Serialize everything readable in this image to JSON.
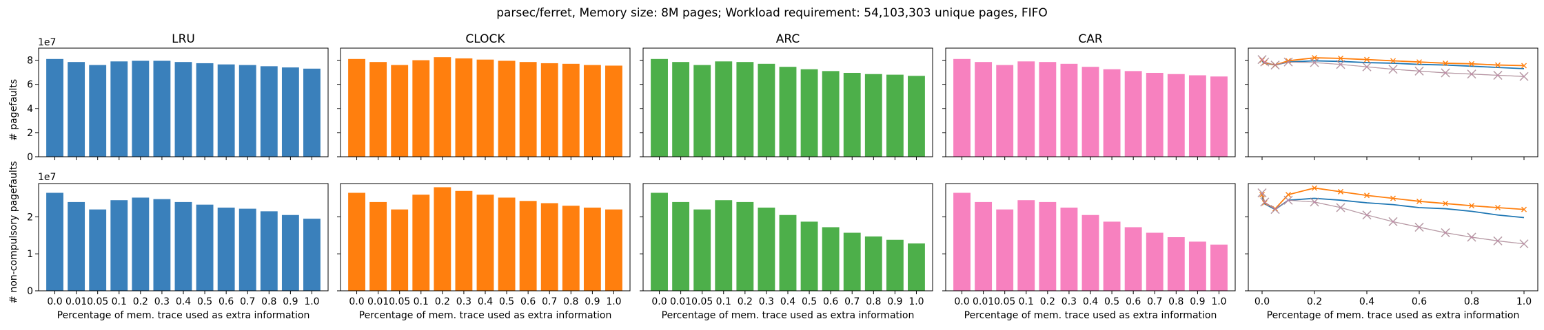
{
  "suptitle": "parsec/ferret, Memory size: 8M pages; Workload requirement: 54,103,303 unique pages, FIFO",
  "scale_label": "1e7",
  "ylabel_top": "# pagefaults",
  "ylabel_bottom": "# non-compulsory pagefaults",
  "xlabel": "Percentage of mem. trace used as extra information",
  "colors": {
    "LRU": "#3a80bb",
    "CLOCK": "#ff7f0e",
    "ARC": "#4daf4a",
    "CAR": "#f781bf",
    "gray": "#999999",
    "line_lru": "#1f77b4",
    "line_clock": "#ff7f0e",
    "line_arc": "#2ca02c",
    "line_car": "#e377c2"
  },
  "chart_data": [
    {
      "type": "bar",
      "row": "top",
      "title": "LRU",
      "color_key": "LRU",
      "categories": [
        "0.0",
        "0.01",
        "0.05",
        "0.1",
        "0.2",
        "0.3",
        "0.4",
        "0.5",
        "0.6",
        "0.7",
        "0.8",
        "0.9",
        "1.0"
      ],
      "values": [
        8.1,
        7.85,
        7.6,
        7.9,
        7.95,
        7.95,
        7.85,
        7.75,
        7.65,
        7.6,
        7.5,
        7.4,
        7.3
      ],
      "ylim": [
        0,
        9
      ],
      "yticks": [
        0,
        2,
        4,
        6,
        8
      ],
      "ylabel": "# pagefaults",
      "xlabel": ""
    },
    {
      "type": "bar",
      "row": "top",
      "title": "CLOCK",
      "color_key": "CLOCK",
      "categories": [
        "0.0",
        "0.01",
        "0.05",
        "0.1",
        "0.2",
        "0.3",
        "0.4",
        "0.5",
        "0.6",
        "0.7",
        "0.8",
        "0.9",
        "1.0"
      ],
      "values": [
        8.1,
        7.85,
        7.6,
        8.0,
        8.25,
        8.15,
        8.05,
        7.95,
        7.85,
        7.75,
        7.7,
        7.6,
        7.55
      ],
      "ylim": [
        0,
        9
      ],
      "yticks": [
        0,
        2,
        4,
        6,
        8
      ],
      "ylabel": "",
      "xlabel": ""
    },
    {
      "type": "bar",
      "row": "top",
      "title": "ARC",
      "color_key": "ARC",
      "categories": [
        "0.0",
        "0.01",
        "0.05",
        "0.1",
        "0.2",
        "0.3",
        "0.4",
        "0.5",
        "0.6",
        "0.7",
        "0.8",
        "0.9",
        "1.0"
      ],
      "values": [
        8.1,
        7.85,
        7.6,
        7.9,
        7.85,
        7.7,
        7.45,
        7.25,
        7.1,
        6.95,
        6.85,
        6.8,
        6.7
      ],
      "ylim": [
        0,
        9
      ],
      "yticks": [
        0,
        2,
        4,
        6,
        8
      ],
      "ylabel": "",
      "xlabel": ""
    },
    {
      "type": "bar",
      "row": "top",
      "title": "CAR",
      "color_key": "CAR",
      "categories": [
        "0.0",
        "0.01",
        "0.05",
        "0.1",
        "0.2",
        "0.3",
        "0.4",
        "0.5",
        "0.6",
        "0.7",
        "0.8",
        "0.9",
        "1.0"
      ],
      "values": [
        8.1,
        7.85,
        7.6,
        7.9,
        7.85,
        7.7,
        7.45,
        7.25,
        7.1,
        6.95,
        6.85,
        6.75,
        6.65
      ],
      "ylim": [
        0,
        9
      ],
      "yticks": [
        0,
        2,
        4,
        6,
        8
      ],
      "ylabel": "",
      "xlabel": ""
    },
    {
      "type": "line",
      "row": "top",
      "title": "",
      "x": [
        0.0,
        0.01,
        0.05,
        0.1,
        0.2,
        0.3,
        0.4,
        0.5,
        0.6,
        0.7,
        0.8,
        0.9,
        1.0
      ],
      "series": [
        {
          "color_key": "line_lru",
          "marker": "none",
          "values": [
            7.9,
            7.75,
            7.6,
            7.85,
            7.95,
            7.9,
            7.8,
            7.75,
            7.65,
            7.6,
            7.5,
            7.4,
            7.3
          ]
        },
        {
          "color_key": "line_clock",
          "marker": "x",
          "values": [
            8.0,
            7.8,
            7.6,
            7.95,
            8.2,
            8.15,
            8.05,
            7.95,
            7.85,
            7.75,
            7.7,
            7.6,
            7.55
          ]
        },
        {
          "color_key": "line_arc",
          "marker": "X",
          "values": [
            8.05,
            7.85,
            7.6,
            7.85,
            7.8,
            7.65,
            7.45,
            7.25,
            7.1,
            6.95,
            6.85,
            6.75,
            6.65
          ]
        },
        {
          "color_key": "line_car",
          "marker": "X",
          "values": [
            8.05,
            7.85,
            7.6,
            7.85,
            7.8,
            7.65,
            7.45,
            7.25,
            7.1,
            6.95,
            6.85,
            6.75,
            6.65
          ]
        }
      ],
      "xticks": [
        0.0,
        0.2,
        0.4,
        0.6,
        0.8,
        1.0
      ],
      "ylim": [
        0,
        9
      ],
      "yticks": [
        0,
        2,
        4,
        6,
        8
      ]
    },
    {
      "type": "bar",
      "row": "bottom",
      "title": "",
      "color_key": "LRU",
      "categories": [
        "0.0",
        "0.01",
        "0.05",
        "0.1",
        "0.2",
        "0.3",
        "0.4",
        "0.5",
        "0.6",
        "0.7",
        "0.8",
        "0.9",
        "1.0"
      ],
      "values": [
        2.65,
        2.4,
        2.2,
        2.45,
        2.52,
        2.48,
        2.4,
        2.33,
        2.25,
        2.22,
        2.15,
        2.05,
        1.95
      ],
      "ylim": [
        0,
        2.9
      ],
      "yticks": [
        0,
        1,
        2
      ],
      "ylabel": "# non-compulsory pagefaults",
      "xlabel": "Percentage of mem. trace used as extra information"
    },
    {
      "type": "bar",
      "row": "bottom",
      "title": "",
      "color_key": "CLOCK",
      "categories": [
        "0.0",
        "0.01",
        "0.05",
        "0.1",
        "0.2",
        "0.3",
        "0.4",
        "0.5",
        "0.6",
        "0.7",
        "0.8",
        "0.9",
        "1.0"
      ],
      "values": [
        2.65,
        2.4,
        2.2,
        2.6,
        2.8,
        2.7,
        2.6,
        2.52,
        2.43,
        2.37,
        2.3,
        2.25,
        2.2
      ],
      "ylim": [
        0,
        2.9
      ],
      "yticks": [
        0,
        1,
        2
      ],
      "ylabel": "",
      "xlabel": "Percentage of mem. trace used as extra information"
    },
    {
      "type": "bar",
      "row": "bottom",
      "title": "",
      "color_key": "ARC",
      "categories": [
        "0.0",
        "0.01",
        "0.05",
        "0.1",
        "0.2",
        "0.3",
        "0.4",
        "0.5",
        "0.6",
        "0.7",
        "0.8",
        "0.9",
        "1.0"
      ],
      "values": [
        2.65,
        2.4,
        2.2,
        2.45,
        2.4,
        2.25,
        2.05,
        1.87,
        1.72,
        1.57,
        1.47,
        1.38,
        1.28
      ],
      "ylim": [
        0,
        2.9
      ],
      "yticks": [
        0,
        1,
        2
      ],
      "ylabel": "",
      "xlabel": "Percentage of mem. trace used as extra information"
    },
    {
      "type": "bar",
      "row": "bottom",
      "title": "",
      "color_key": "CAR",
      "categories": [
        "0.0",
        "0.01",
        "0.05",
        "0.1",
        "0.2",
        "0.3",
        "0.4",
        "0.5",
        "0.6",
        "0.7",
        "0.8",
        "0.9",
        "1.0"
      ],
      "values": [
        2.65,
        2.4,
        2.2,
        2.45,
        2.4,
        2.25,
        2.05,
        1.87,
        1.72,
        1.57,
        1.45,
        1.33,
        1.25
      ],
      "ylim": [
        0,
        2.9
      ],
      "yticks": [
        0,
        1,
        2
      ],
      "ylabel": "",
      "xlabel": "Percentage of mem. trace used as extra information"
    },
    {
      "type": "line",
      "row": "bottom",
      "title": "",
      "x": [
        0.0,
        0.01,
        0.05,
        0.1,
        0.2,
        0.3,
        0.4,
        0.5,
        0.6,
        0.7,
        0.8,
        0.9,
        1.0
      ],
      "series": [
        {
          "color_key": "line_lru",
          "marker": "none",
          "values": [
            2.55,
            2.35,
            2.2,
            2.45,
            2.5,
            2.45,
            2.38,
            2.33,
            2.25,
            2.22,
            2.15,
            2.05,
            1.98
          ]
        },
        {
          "color_key": "line_clock",
          "marker": "x",
          "values": [
            2.6,
            2.38,
            2.22,
            2.6,
            2.78,
            2.68,
            2.58,
            2.5,
            2.42,
            2.36,
            2.3,
            2.25,
            2.2
          ]
        },
        {
          "color_key": "line_arc",
          "marker": "X",
          "values": [
            2.65,
            2.4,
            2.2,
            2.45,
            2.4,
            2.25,
            2.05,
            1.87,
            1.72,
            1.57,
            1.45,
            1.35,
            1.27
          ]
        },
        {
          "color_key": "line_car",
          "marker": "X",
          "values": [
            2.65,
            2.4,
            2.2,
            2.45,
            2.4,
            2.25,
            2.05,
            1.87,
            1.72,
            1.57,
            1.45,
            1.35,
            1.27
          ]
        }
      ],
      "xticks": [
        0.0,
        0.2,
        0.4,
        0.6,
        0.8,
        1.0
      ],
      "ylim": [
        0,
        2.9
      ],
      "yticks": [
        0,
        1,
        2
      ],
      "xlabel": "Percentage of mem. trace used as extra information"
    }
  ]
}
